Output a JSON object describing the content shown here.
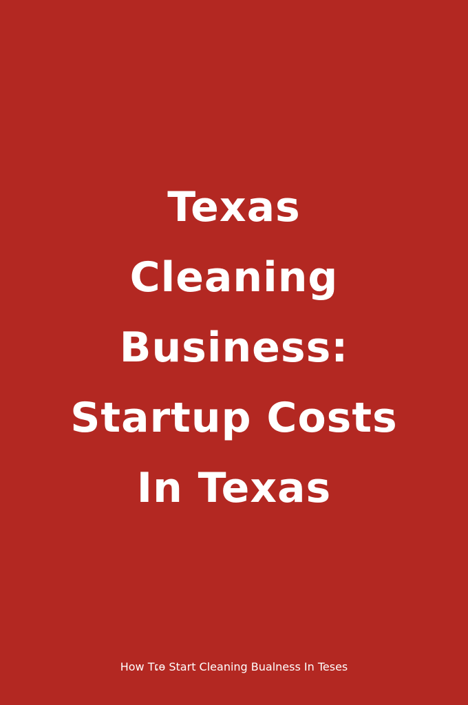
{
  "poster": {
    "title_lines": [
      "Texas",
      "Cleaning",
      "Business:",
      "Startup Costs",
      "In Texas"
    ],
    "footer_text": "How Tເɵ Start Cleaning Bualness In Teses",
    "colors": {
      "background": "#b32822",
      "text": "#ffffff"
    }
  }
}
